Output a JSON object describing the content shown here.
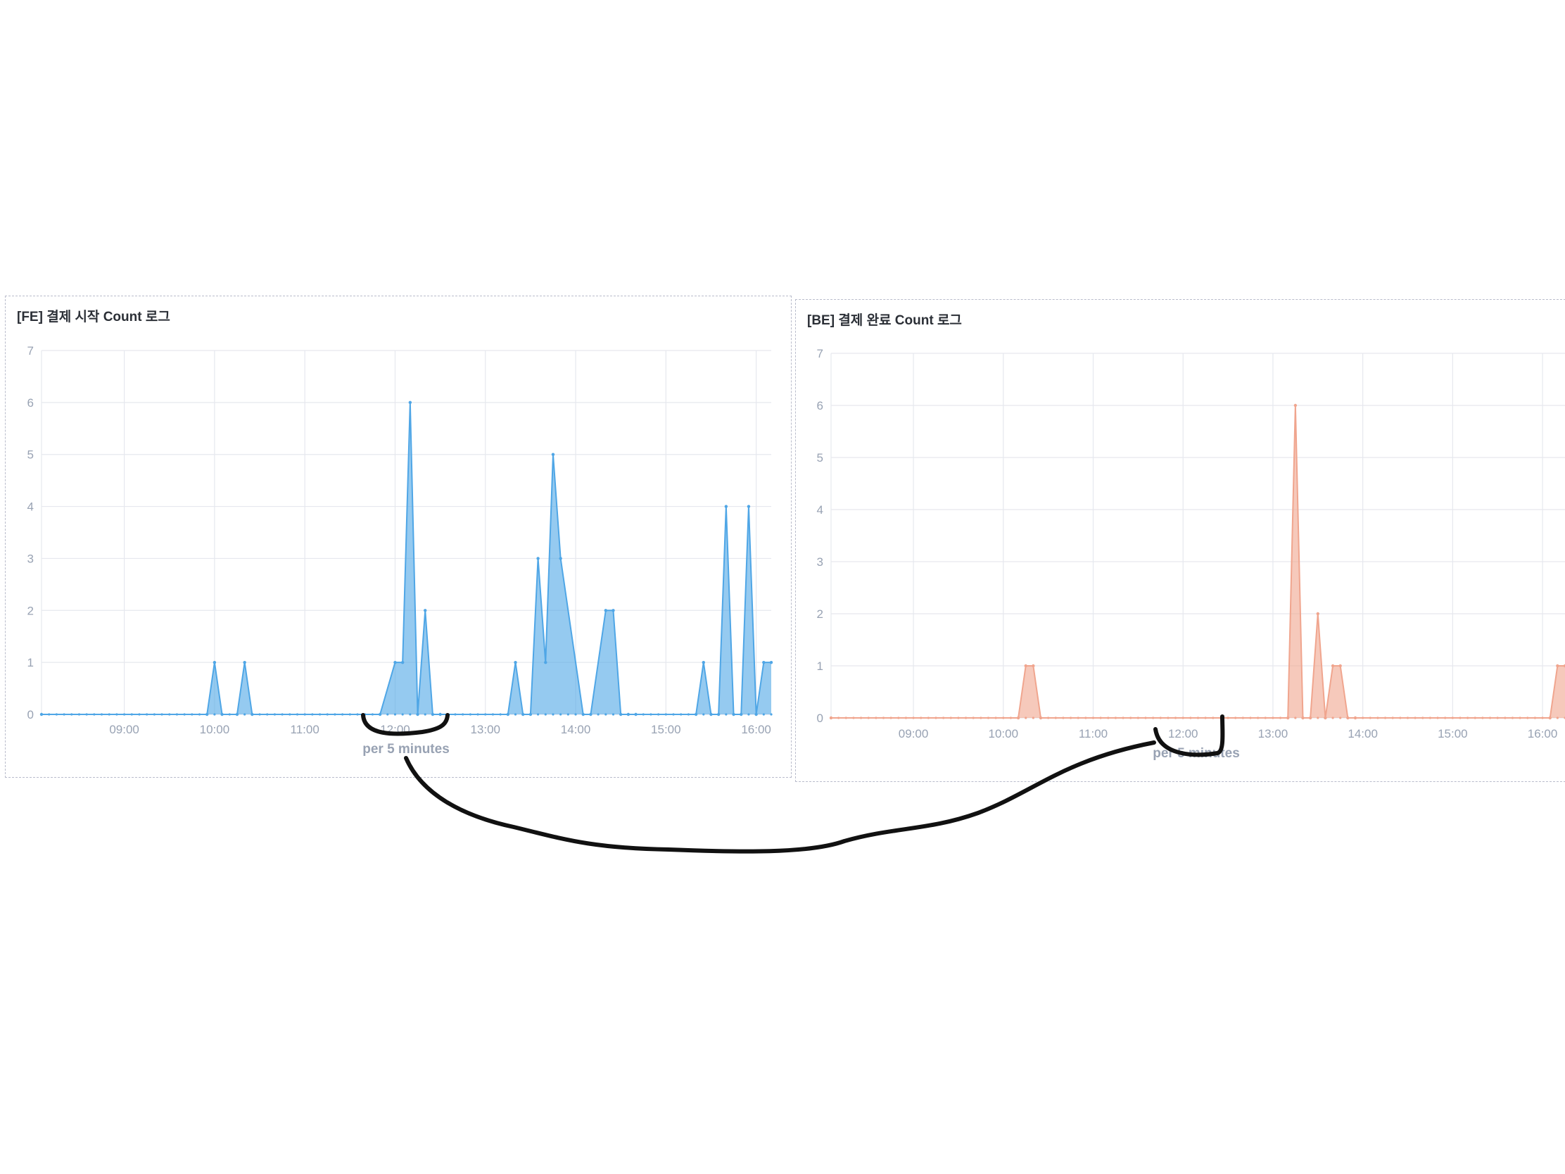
{
  "chart_data": [
    {
      "type": "area",
      "title": "[FE] 결제 시작 Count 로그",
      "xlabel": "per 5 minutes",
      "ylabel": "",
      "ylim": [
        0,
        7
      ],
      "yticks": [
        0,
        1,
        2,
        3,
        4,
        5,
        6,
        7
      ],
      "xlim": [
        "08:05",
        "16:10"
      ],
      "xticks": [
        "09:00",
        "10:00",
        "11:00",
        "12:00",
        "13:00",
        "14:00",
        "15:00",
        "16:00"
      ],
      "grid": true,
      "color": "#4fa6e6",
      "series": [
        {
          "x": [
            "08:05",
            "09:55",
            "10:00",
            "10:05",
            "10:15",
            "10:20",
            "10:25",
            "11:50",
            "12:00",
            "12:05",
            "12:10",
            "12:15",
            "12:20",
            "12:25",
            "12:30",
            "13:15",
            "13:20",
            "13:25",
            "13:30",
            "13:35",
            "13:40",
            "13:45",
            "13:50",
            "14:05",
            "14:10",
            "14:20",
            "14:25",
            "14:30",
            "14:35",
            "14:40",
            "15:20",
            "15:25",
            "15:30",
            "15:35",
            "15:40",
            "15:45",
            "15:50",
            "15:55",
            "16:00",
            "16:05",
            "16:10"
          ],
          "values": [
            0,
            0,
            1,
            0,
            0,
            1,
            0,
            0,
            1,
            1,
            6,
            0,
            2,
            0,
            0,
            0,
            1,
            0,
            0,
            3,
            1,
            5,
            3,
            0,
            0,
            2,
            2,
            0,
            0,
            0,
            0,
            1,
            0,
            0,
            4,
            0,
            0,
            4,
            0,
            1,
            1
          ]
        }
      ]
    },
    {
      "type": "area",
      "title": "[BE] 결제 완료 Count 로그",
      "xlabel": "per 5 minutes",
      "ylabel": "",
      "ylim": [
        0,
        7
      ],
      "yticks": [
        0,
        1,
        2,
        3,
        4,
        5,
        6,
        7
      ],
      "xlim": [
        "08:05",
        "16:15"
      ],
      "xticks": [
        "09:00",
        "10:00",
        "11:00",
        "12:00",
        "13:00",
        "14:00",
        "15:00",
        "16:00"
      ],
      "grid": true,
      "color": "#f0a58e",
      "series": [
        {
          "x": [
            "08:05",
            "10:10",
            "10:15",
            "10:20",
            "10:25",
            "13:10",
            "13:15",
            "13:20",
            "13:25",
            "13:30",
            "13:35",
            "13:40",
            "13:45",
            "13:50",
            "13:55",
            "16:05",
            "16:10",
            "16:15"
          ],
          "values": [
            0,
            0,
            1,
            1,
            0,
            0,
            6,
            0,
            0,
            2,
            0,
            1,
            1,
            0,
            0,
            0,
            1,
            1
          ]
        }
      ]
    }
  ],
  "annotation": {
    "color": "#111111"
  }
}
